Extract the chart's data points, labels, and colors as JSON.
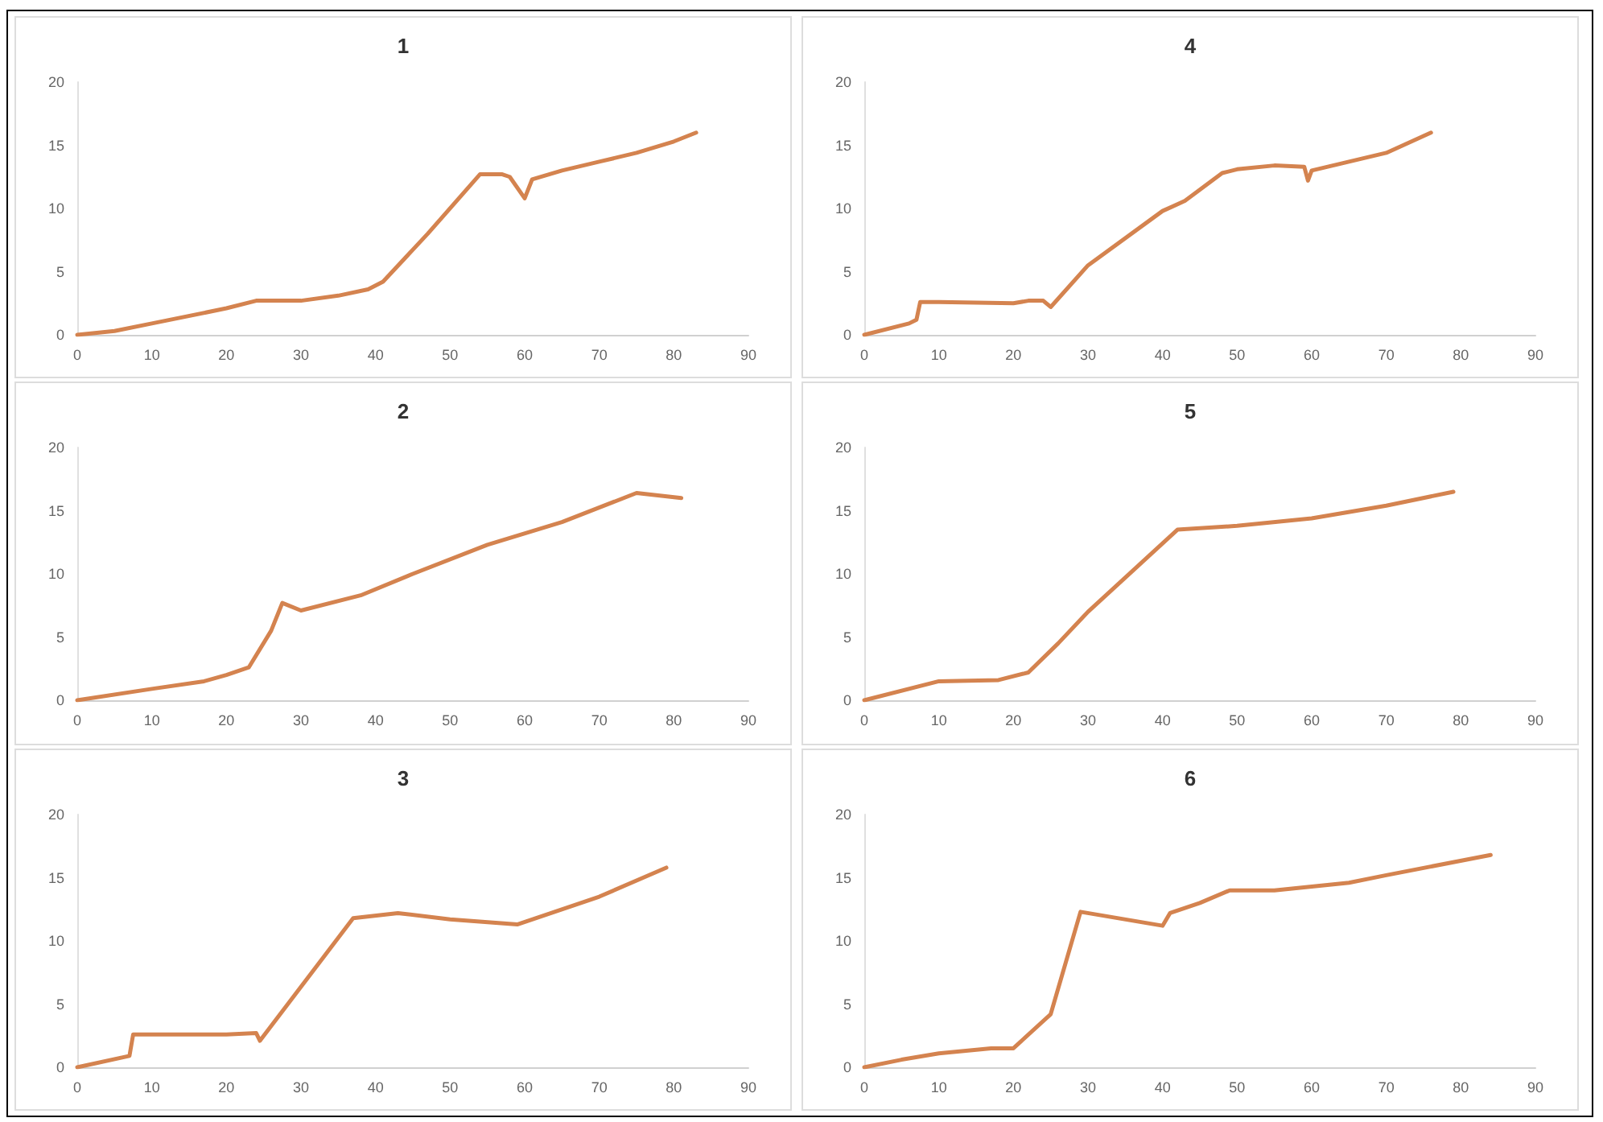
{
  "chart_data": [
    {
      "type": "line",
      "title": "1",
      "color": "#d4834f",
      "xlim": [
        0,
        90
      ],
      "ylim": [
        0,
        20
      ],
      "xticks": [
        0,
        10,
        20,
        30,
        40,
        50,
        60,
        70,
        80,
        90
      ],
      "yticks": [
        0,
        5,
        10,
        15,
        20
      ],
      "x": [
        0,
        5,
        10,
        20,
        24,
        30,
        35,
        39,
        41,
        47,
        54,
        57,
        58,
        60,
        61,
        65,
        70,
        75,
        80,
        83
      ],
      "values": [
        0,
        0.3,
        0.9,
        2.1,
        2.7,
        2.7,
        3.1,
        3.6,
        4.2,
        8,
        12.7,
        12.7,
        12.5,
        10.8,
        12.3,
        13,
        13.7,
        14.4,
        15.3,
        16
      ]
    },
    {
      "type": "line",
      "title": "4",
      "color": "#d4834f",
      "xlim": [
        0,
        90
      ],
      "ylim": [
        0,
        20
      ],
      "xticks": [
        0,
        10,
        20,
        30,
        40,
        50,
        60,
        70,
        80,
        90
      ],
      "yticks": [
        0,
        5,
        10,
        15,
        20
      ],
      "x": [
        0,
        6,
        7,
        7.5,
        10,
        20,
        22,
        24,
        25,
        30,
        40,
        43,
        48,
        50,
        55,
        59,
        59.5,
        60,
        65,
        70,
        76
      ],
      "values": [
        0,
        0.9,
        1.2,
        2.6,
        2.6,
        2.5,
        2.7,
        2.7,
        2.2,
        5.5,
        9.8,
        10.6,
        12.8,
        13.1,
        13.4,
        13.3,
        12.2,
        13,
        13.7,
        14.4,
        16
      ]
    },
    {
      "type": "line",
      "title": "2",
      "color": "#d4834f",
      "xlim": [
        0,
        90
      ],
      "ylim": [
        0,
        20
      ],
      "xticks": [
        0,
        10,
        20,
        30,
        40,
        50,
        60,
        70,
        80,
        90
      ],
      "yticks": [
        0,
        5,
        10,
        15,
        20
      ],
      "x": [
        0,
        10,
        17,
        20,
        23,
        26,
        27.5,
        30,
        38,
        45,
        55,
        65,
        75,
        81
      ],
      "values": [
        0,
        0.9,
        1.5,
        2,
        2.6,
        5.5,
        7.7,
        7.1,
        8.3,
        10,
        12.3,
        14.1,
        16.4,
        16
      ]
    },
    {
      "type": "line",
      "title": "5",
      "color": "#d4834f",
      "xlim": [
        0,
        90
      ],
      "ylim": [
        0,
        20
      ],
      "xticks": [
        0,
        10,
        20,
        30,
        40,
        50,
        60,
        70,
        80,
        90
      ],
      "yticks": [
        0,
        5,
        10,
        15,
        20
      ],
      "x": [
        0,
        10,
        18,
        22,
        26,
        30,
        42,
        50,
        60,
        70,
        79
      ],
      "values": [
        0,
        1.5,
        1.6,
        2.2,
        4.5,
        7,
        13.5,
        13.8,
        14.4,
        15.4,
        16.5
      ]
    },
    {
      "type": "line",
      "title": "3",
      "color": "#d4834f",
      "xlim": [
        0,
        90
      ],
      "ylim": [
        0,
        20
      ],
      "xticks": [
        0,
        10,
        20,
        30,
        40,
        50,
        60,
        70,
        80,
        90
      ],
      "yticks": [
        0,
        5,
        10,
        15,
        20
      ],
      "x": [
        0,
        7,
        7.5,
        20,
        24,
        24.5,
        37,
        43,
        50,
        59,
        70,
        79
      ],
      "values": [
        0,
        0.9,
        2.6,
        2.6,
        2.7,
        2.1,
        11.8,
        12.2,
        11.7,
        11.3,
        13.5,
        15.8
      ]
    },
    {
      "type": "line",
      "title": "6",
      "color": "#d4834f",
      "xlim": [
        0,
        90
      ],
      "ylim": [
        0,
        20
      ],
      "xticks": [
        0,
        10,
        20,
        30,
        40,
        50,
        60,
        70,
        80,
        90
      ],
      "yticks": [
        0,
        5,
        10,
        15,
        20
      ],
      "x": [
        0,
        5,
        10,
        17,
        20,
        25,
        29,
        40,
        41,
        45,
        49,
        55,
        65,
        70,
        84
      ],
      "values": [
        0,
        0.6,
        1.1,
        1.5,
        1.5,
        4.2,
        12.3,
        11.2,
        12.2,
        13,
        14,
        14,
        14.6,
        15.2,
        16.8
      ]
    }
  ]
}
